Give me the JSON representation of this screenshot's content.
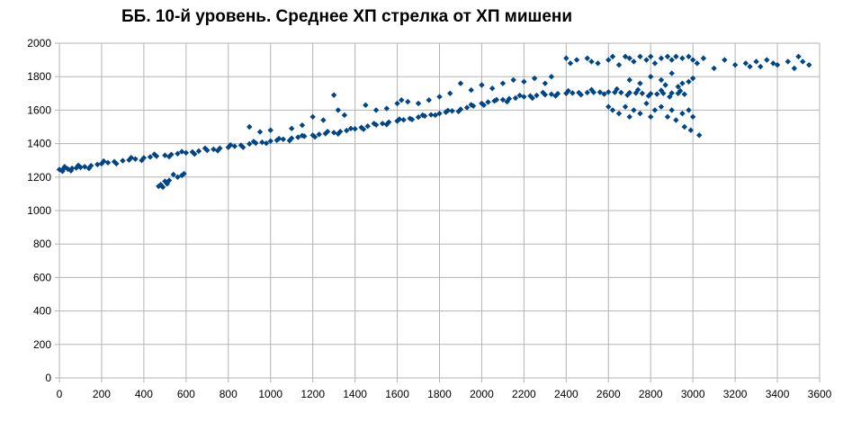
{
  "chart_data": {
    "type": "scatter",
    "title": "ББ. 10-й уровень. Среднее ХП стрелка от ХП мишени",
    "xlabel": "",
    "ylabel": "",
    "xlim": [
      0,
      3600
    ],
    "ylim": [
      0,
      2000
    ],
    "x_ticks": [
      0,
      200,
      400,
      600,
      800,
      1000,
      1200,
      1400,
      1600,
      1800,
      2000,
      2200,
      2400,
      2600,
      2800,
      3000,
      3200,
      3400,
      3600
    ],
    "y_ticks": [
      0,
      200,
      400,
      600,
      800,
      1000,
      1200,
      1400,
      1600,
      1800,
      2000
    ],
    "grid": true,
    "legend": "none",
    "marker_color": "#004586",
    "marker": "diamond",
    "series": [
      {
        "points": [
          [
            0,
            1245
          ],
          [
            10,
            1240
          ],
          [
            20,
            1250
          ],
          [
            40,
            1248
          ],
          [
            60,
            1252
          ],
          [
            80,
            1255
          ],
          [
            100,
            1258
          ],
          [
            120,
            1262
          ],
          [
            150,
            1268
          ],
          [
            180,
            1275
          ],
          [
            200,
            1280
          ],
          [
            230,
            1286
          ],
          [
            260,
            1292
          ],
          [
            300,
            1298
          ],
          [
            330,
            1302
          ],
          [
            360,
            1308
          ],
          [
            400,
            1315
          ],
          [
            430,
            1320
          ],
          [
            460,
            1325
          ],
          [
            500,
            1330
          ],
          [
            530,
            1335
          ],
          [
            560,
            1340
          ],
          [
            600,
            1345
          ],
          [
            630,
            1350
          ],
          [
            660,
            1355
          ],
          [
            700,
            1360
          ],
          [
            730,
            1366
          ],
          [
            760,
            1372
          ],
          [
            800,
            1378
          ],
          [
            830,
            1384
          ],
          [
            860,
            1390
          ],
          [
            900,
            1398
          ],
          [
            930,
            1403
          ],
          [
            960,
            1408
          ],
          [
            1000,
            1415
          ],
          [
            1030,
            1420
          ],
          [
            1060,
            1426
          ],
          [
            1100,
            1432
          ],
          [
            1130,
            1438
          ],
          [
            1160,
            1444
          ],
          [
            1200,
            1450
          ],
          [
            1230,
            1455
          ],
          [
            1260,
            1460
          ],
          [
            1300,
            1466
          ],
          [
            1330,
            1472
          ],
          [
            1360,
            1478
          ],
          [
            1400,
            1488
          ],
          [
            1430,
            1496
          ],
          [
            1460,
            1504
          ],
          [
            1500,
            1512
          ],
          [
            1530,
            1520
          ],
          [
            1560,
            1528
          ],
          [
            1600,
            1535
          ],
          [
            1630,
            1542
          ],
          [
            1660,
            1550
          ],
          [
            1700,
            1558
          ],
          [
            1730,
            1565
          ],
          [
            1760,
            1572
          ],
          [
            1800,
            1580
          ],
          [
            1830,
            1588
          ],
          [
            1860,
            1595
          ],
          [
            1900,
            1605
          ],
          [
            1930,
            1615
          ],
          [
            1960,
            1625
          ],
          [
            2000,
            1640
          ],
          [
            2030,
            1648
          ],
          [
            2060,
            1655
          ],
          [
            2100,
            1662
          ],
          [
            2130,
            1668
          ],
          [
            2160,
            1672
          ],
          [
            2200,
            1680
          ],
          [
            2230,
            1685
          ],
          [
            2260,
            1688
          ],
          [
            2300,
            1692
          ],
          [
            2330,
            1695
          ],
          [
            2360,
            1698
          ],
          [
            2400,
            1700
          ],
          [
            2430,
            1702
          ],
          [
            2460,
            1704
          ],
          [
            2500,
            1705
          ],
          [
            2530,
            1706
          ],
          [
            2560,
            1707
          ],
          [
            2600,
            1708
          ],
          [
            2630,
            1706
          ],
          [
            2660,
            1705
          ],
          [
            2700,
            1704
          ],
          [
            2730,
            1702
          ],
          [
            2760,
            1700
          ],
          [
            2800,
            1698
          ],
          [
            2830,
            1696
          ],
          [
            2860,
            1700
          ],
          [
            2900,
            1702
          ],
          [
            2930,
            1700
          ],
          [
            2960,
            1695
          ],
          [
            15,
            1235
          ],
          [
            25,
            1262
          ],
          [
            55,
            1238
          ],
          [
            90,
            1270
          ],
          [
            140,
            1252
          ],
          [
            210,
            1295
          ],
          [
            270,
            1280
          ],
          [
            340,
            1316
          ],
          [
            390,
            1300
          ],
          [
            450,
            1336
          ],
          [
            520,
            1322
          ],
          [
            580,
            1352
          ],
          [
            640,
            1338
          ],
          [
            690,
            1372
          ],
          [
            750,
            1358
          ],
          [
            810,
            1392
          ],
          [
            870,
            1378
          ],
          [
            920,
            1412
          ],
          [
            980,
            1402
          ],
          [
            1040,
            1430
          ],
          [
            1090,
            1418
          ],
          [
            1150,
            1448
          ],
          [
            1210,
            1440
          ],
          [
            1270,
            1472
          ],
          [
            1320,
            1458
          ],
          [
            1380,
            1490
          ],
          [
            1440,
            1486
          ],
          [
            1490,
            1520
          ],
          [
            1550,
            1514
          ],
          [
            1610,
            1546
          ],
          [
            1670,
            1544
          ],
          [
            1720,
            1570
          ],
          [
            1780,
            1570
          ],
          [
            1840,
            1598
          ],
          [
            1890,
            1592
          ],
          [
            1950,
            1632
          ],
          [
            2010,
            1630
          ],
          [
            2070,
            1662
          ],
          [
            2120,
            1650
          ],
          [
            2180,
            1688
          ],
          [
            2240,
            1672
          ],
          [
            2290,
            1705
          ],
          [
            2350,
            1685
          ],
          [
            2410,
            1715
          ],
          [
            2470,
            1692
          ],
          [
            2520,
            1722
          ],
          [
            2580,
            1696
          ],
          [
            2640,
            1726
          ],
          [
            2690,
            1690
          ],
          [
            2740,
            1722
          ],
          [
            2790,
            1685
          ],
          [
            2850,
            1718
          ],
          [
            2890,
            1680
          ],
          [
            2940,
            1715
          ],
          [
            480,
            1155
          ],
          [
            470,
            1145
          ],
          [
            500,
            1175
          ],
          [
            510,
            1160
          ],
          [
            490,
            1140
          ],
          [
            540,
            1215
          ],
          [
            560,
            1200
          ],
          [
            580,
            1210
          ],
          [
            590,
            1220
          ],
          [
            520,
            1180
          ],
          [
            900,
            1500
          ],
          [
            950,
            1470
          ],
          [
            1000,
            1480
          ],
          [
            1100,
            1490
          ],
          [
            1150,
            1510
          ],
          [
            1200,
            1560
          ],
          [
            1250,
            1540
          ],
          [
            1300,
            1690
          ],
          [
            1320,
            1600
          ],
          [
            1350,
            1570
          ],
          [
            1450,
            1630
          ],
          [
            1500,
            1600
          ],
          [
            1550,
            1610
          ],
          [
            1600,
            1640
          ],
          [
            1620,
            1660
          ],
          [
            1650,
            1650
          ],
          [
            1700,
            1640
          ],
          [
            1750,
            1660
          ],
          [
            1800,
            1680
          ],
          [
            1850,
            1700
          ],
          [
            1900,
            1760
          ],
          [
            1950,
            1720
          ],
          [
            2000,
            1750
          ],
          [
            2050,
            1730
          ],
          [
            2100,
            1760
          ],
          [
            2150,
            1780
          ],
          [
            2200,
            1770
          ],
          [
            2250,
            1790
          ],
          [
            2300,
            1760
          ],
          [
            2330,
            1800
          ],
          [
            2400,
            1910
          ],
          [
            2420,
            1880
          ],
          [
            2450,
            1900
          ],
          [
            2500,
            1910
          ],
          [
            2520,
            1890
          ],
          [
            2550,
            1880
          ],
          [
            2600,
            1900
          ],
          [
            2620,
            1920
          ],
          [
            2650,
            1870
          ],
          [
            2680,
            1920
          ],
          [
            2700,
            1910
          ],
          [
            2720,
            1890
          ],
          [
            2750,
            1920
          ],
          [
            2780,
            1900
          ],
          [
            2800,
            1920
          ],
          [
            2820,
            1880
          ],
          [
            2850,
            1910
          ],
          [
            2880,
            1920
          ],
          [
            2900,
            1900
          ],
          [
            2920,
            1920
          ],
          [
            2950,
            1910
          ],
          [
            2980,
            1920
          ],
          [
            3000,
            1900
          ],
          [
            3020,
            1880
          ],
          [
            3050,
            1910
          ],
          [
            3100,
            1850
          ],
          [
            3150,
            1900
          ],
          [
            3200,
            1870
          ],
          [
            3250,
            1880
          ],
          [
            3300,
            1890
          ],
          [
            3320,
            1860
          ],
          [
            3350,
            1900
          ],
          [
            3400,
            1870
          ],
          [
            3450,
            1890
          ],
          [
            3500,
            1920
          ],
          [
            3520,
            1890
          ],
          [
            3550,
            1870
          ],
          [
            3480,
            1850
          ],
          [
            3380,
            1880
          ],
          [
            3270,
            1860
          ],
          [
            2600,
            1620
          ],
          [
            2620,
            1600
          ],
          [
            2650,
            1580
          ],
          [
            2680,
            1620
          ],
          [
            2700,
            1560
          ],
          [
            2720,
            1600
          ],
          [
            2750,
            1580
          ],
          [
            2780,
            1640
          ],
          [
            2800,
            1560
          ],
          [
            2820,
            1600
          ],
          [
            2850,
            1620
          ],
          [
            2880,
            1560
          ],
          [
            2900,
            1600
          ],
          [
            2920,
            1540
          ],
          [
            2950,
            1580
          ],
          [
            2980,
            1600
          ],
          [
            3000,
            1560
          ],
          [
            2960,
            1500
          ],
          [
            2990,
            1480
          ],
          [
            3030,
            1450
          ],
          [
            2700,
            1780
          ],
          [
            2750,
            1760
          ],
          [
            2800,
            1800
          ],
          [
            2850,
            1780
          ],
          [
            2900,
            1820
          ],
          [
            2950,
            1760
          ],
          [
            3000,
            1790
          ],
          [
            2870,
            1750
          ],
          [
            2930,
            1740
          ],
          [
            2980,
            1770
          ]
        ]
      }
    ]
  }
}
